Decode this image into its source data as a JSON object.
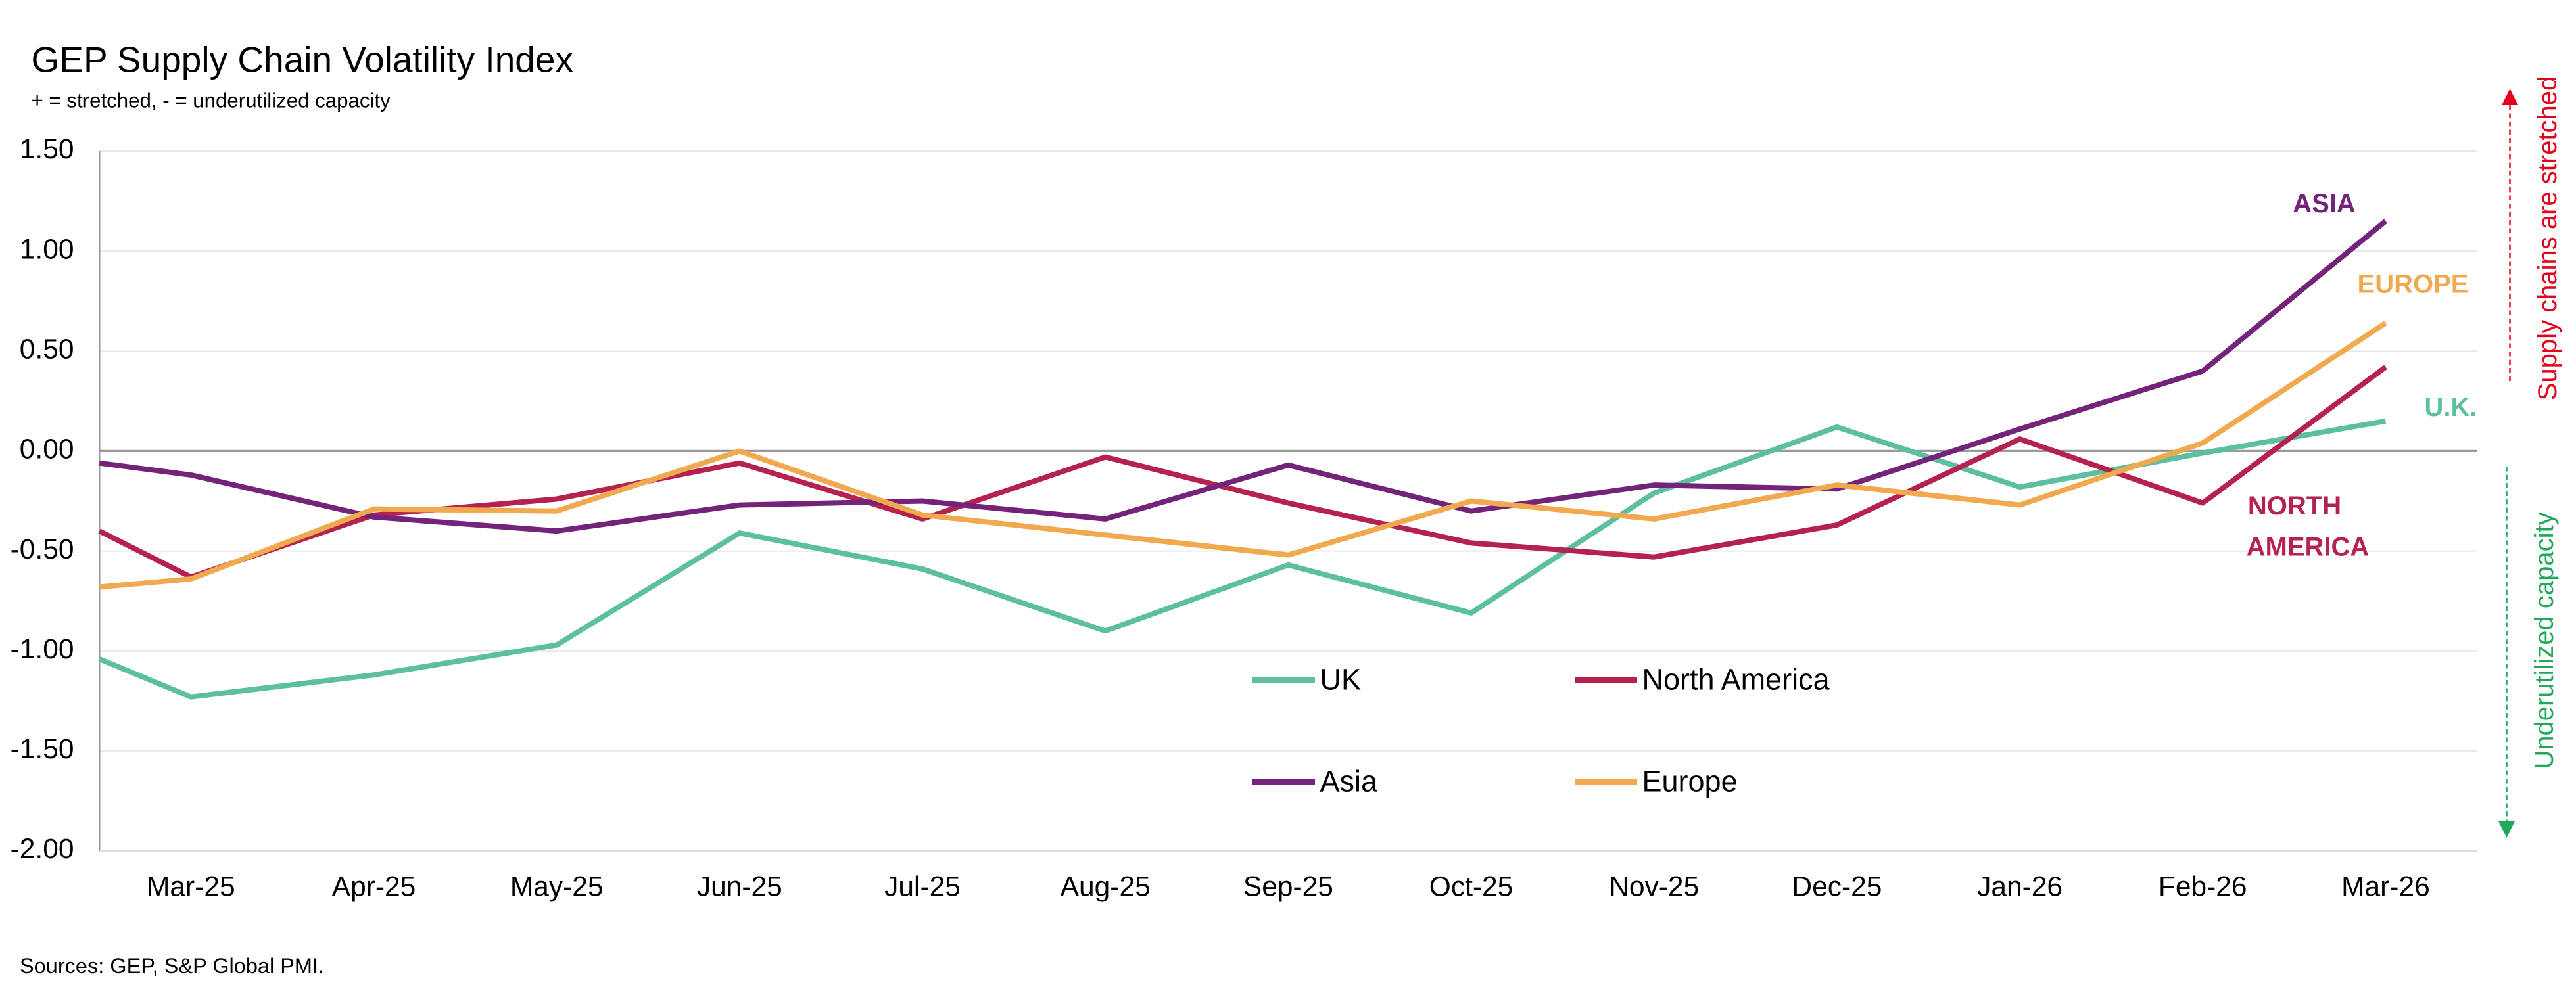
{
  "chart_data": {
    "type": "line",
    "title": "GEP Supply Chain Volatility Index",
    "subtitle": "+ = stretched, - = underutilized capacity",
    "source": "Sources: GEP, S&P Global PMI.",
    "categories": [
      null,
      "Mar-25",
      "Apr-25",
      "May-25",
      "Jun-25",
      "Jul-25",
      "Aug-25",
      "Sep-25",
      "Oct-25",
      "Nov-25",
      "Dec-25",
      "Jan-26",
      "Feb-26",
      "Mar-26"
    ],
    "series": [
      {
        "name": "UK",
        "color": "#5cbf9f",
        "values": [
          -1.04,
          -1.23,
          -1.12,
          -0.97,
          -0.41,
          -0.59,
          -0.9,
          -0.57,
          -0.81,
          -0.21,
          0.12,
          -0.18,
          -0.01,
          0.15
        ]
      },
      {
        "name": "North America",
        "color": "#b5224f",
        "values": [
          -0.4,
          -0.63,
          -0.32,
          -0.24,
          -0.06,
          -0.34,
          -0.03,
          -0.26,
          -0.46,
          -0.53,
          -0.37,
          0.06,
          -0.26,
          0.42
        ]
      },
      {
        "name": "Asia",
        "color": "#74237a",
        "values": [
          -0.06,
          -0.12,
          -0.33,
          -0.4,
          -0.27,
          -0.25,
          -0.34,
          -0.07,
          -0.3,
          -0.17,
          -0.19,
          0.11,
          0.4,
          1.15
        ]
      },
      {
        "name": "Europe",
        "color": "#f0a94e",
        "values": [
          -0.68,
          -0.64,
          -0.29,
          -0.3,
          0.0,
          -0.32,
          -0.42,
          -0.52,
          -0.25,
          -0.34,
          -0.17,
          -0.27,
          0.04,
          0.64
        ]
      }
    ],
    "annotations": [
      "ASIA",
      "EUROPE",
      "U.K.",
      "NORTH",
      "AMERICA"
    ],
    "y_annotations": {
      "top": "Supply chains are stretched",
      "bottom": "Underutilized capacity"
    },
    "ylim": [
      -2.0,
      1.5
    ],
    "yticks": [
      {
        "value": 1.5,
        "label": "1.50"
      },
      {
        "value": 1.0,
        "label": "1.00"
      },
      {
        "value": 0.5,
        "label": "0.50"
      },
      {
        "value": 0,
        "label": "0.00"
      },
      {
        "value": -0.5,
        "label": "-0.50"
      },
      {
        "value": -1.0,
        "label": "-1.00"
      },
      {
        "value": -1.5,
        "label": "-1.50"
      },
      {
        "value": -2.0,
        "label": "-2.00"
      }
    ],
    "grid": true
  }
}
